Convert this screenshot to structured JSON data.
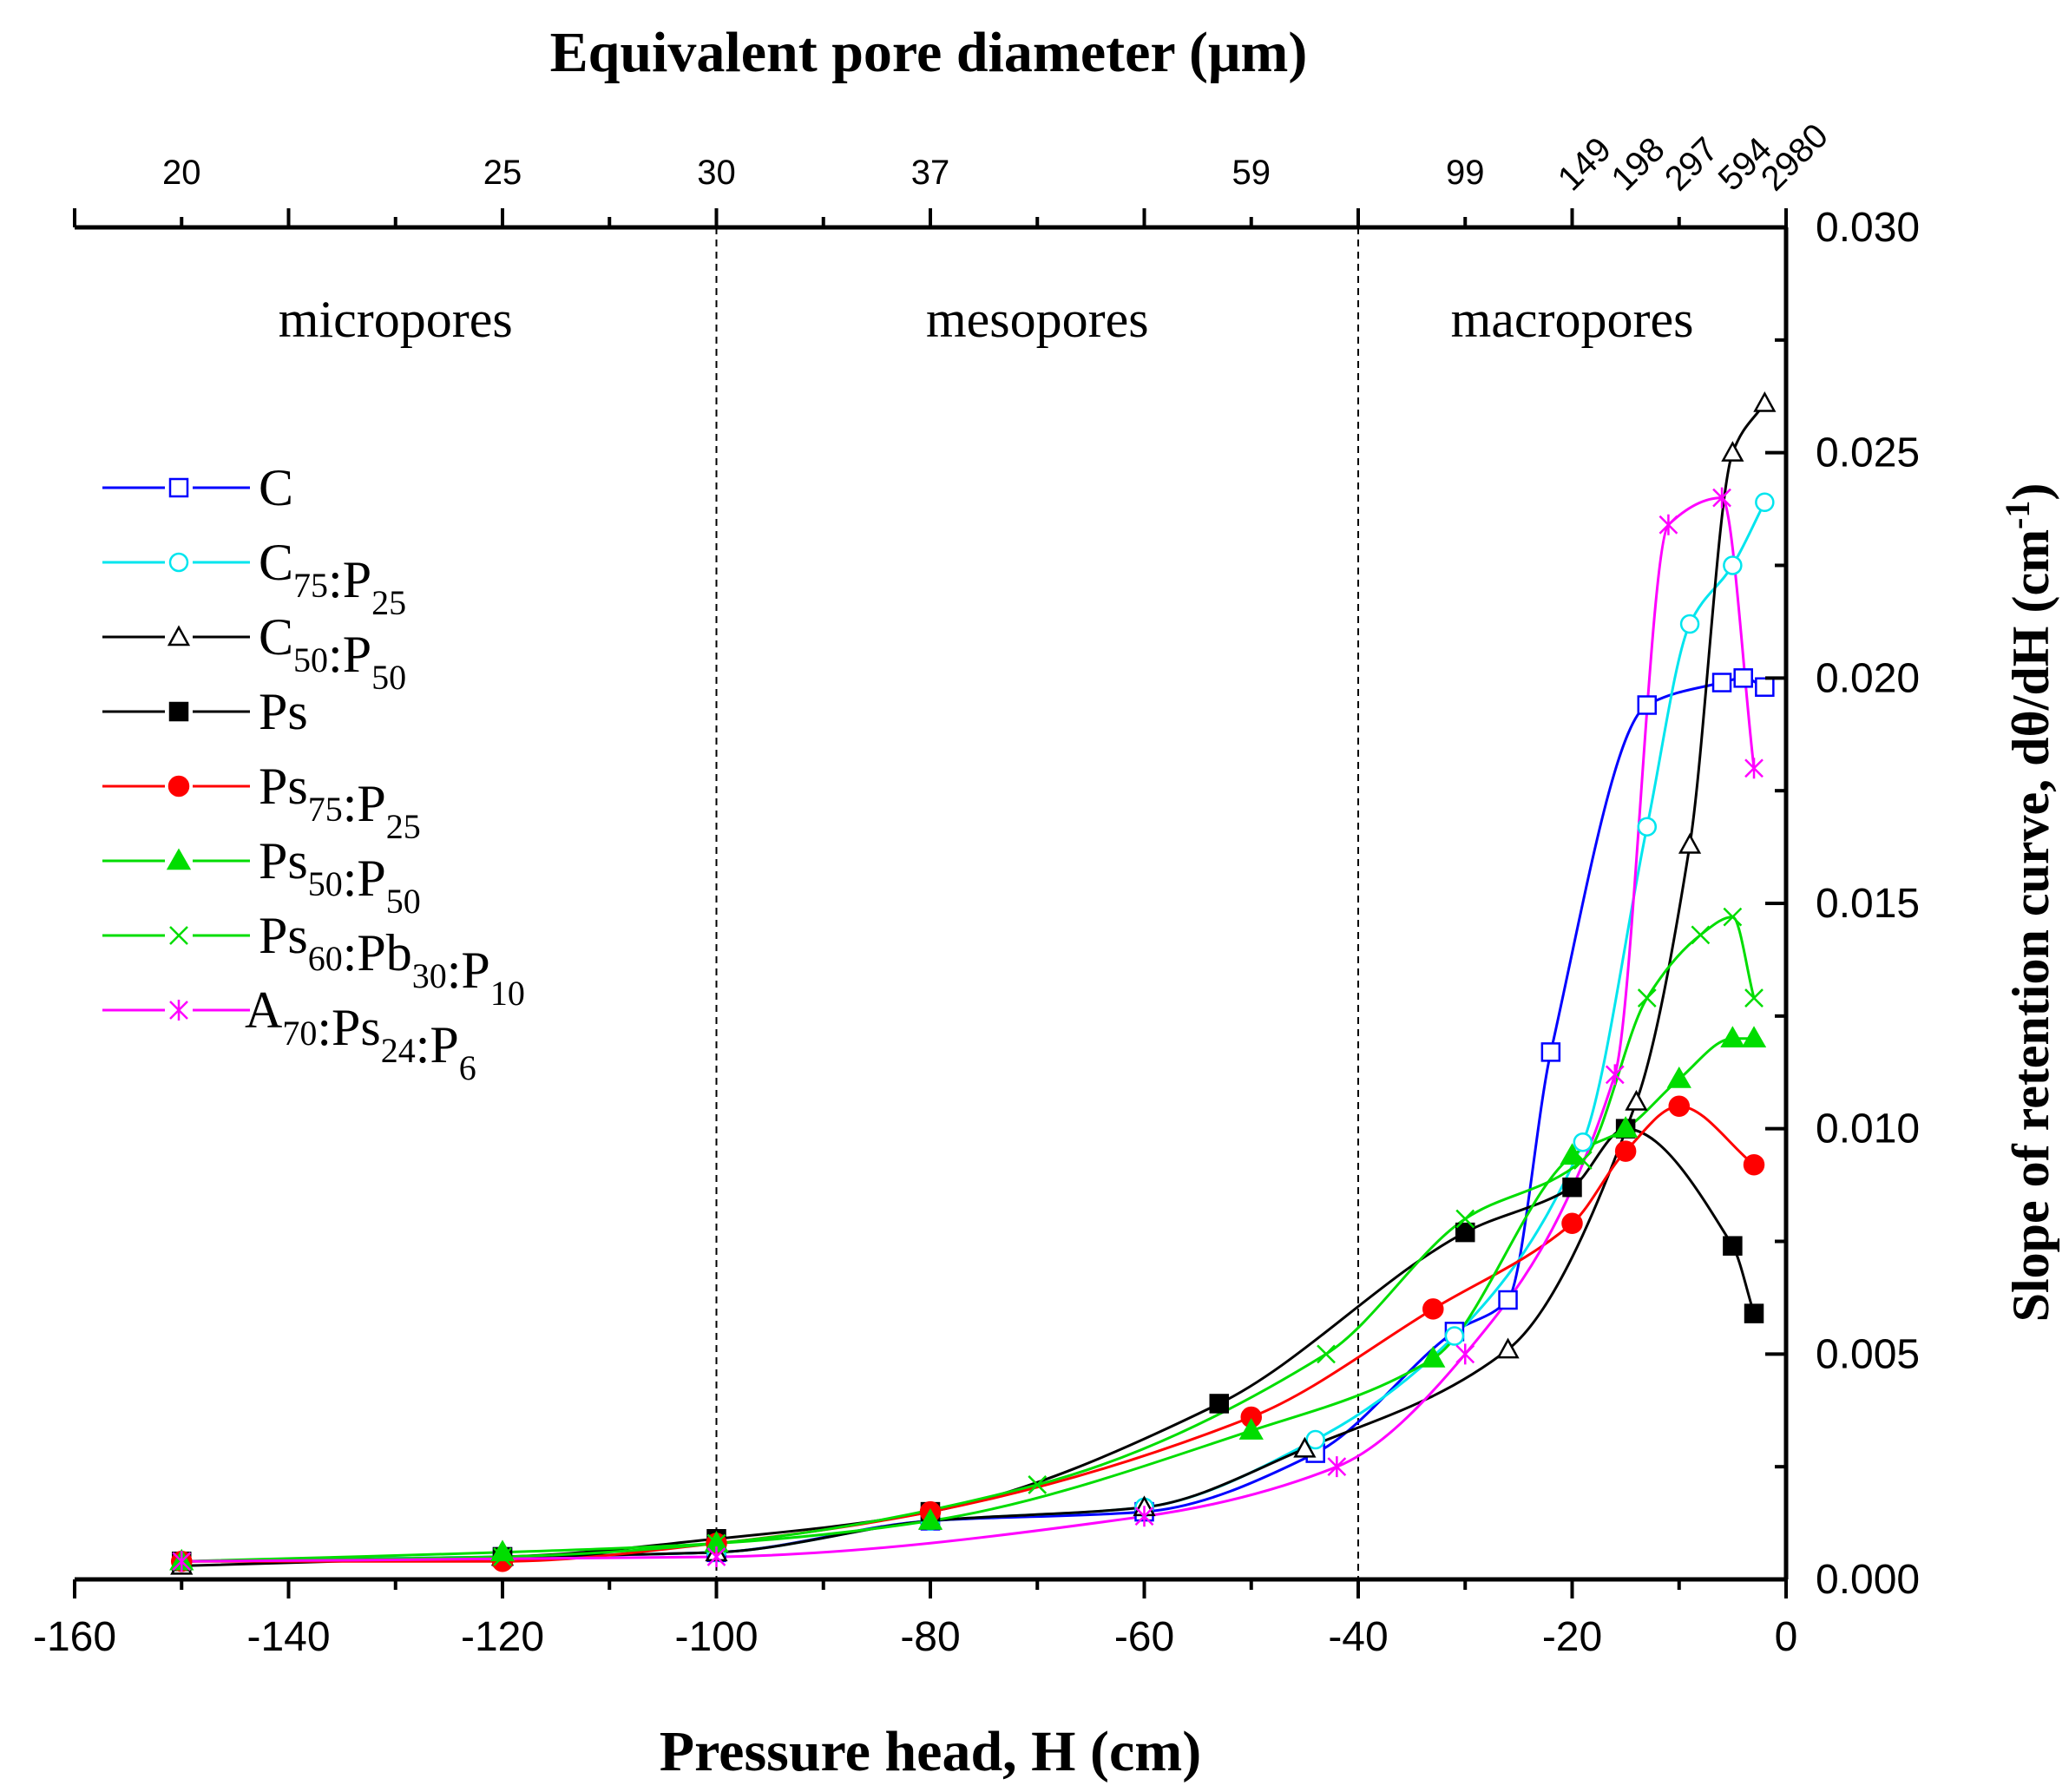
{
  "chart_data": {
    "type": "scatter",
    "title": "Equivalent pore diameter (μm)",
    "xlabel": "Pressure head, H (cm)",
    "ylabel": "Slope of retention curve, dθ/dH (cm⁻¹)",
    "xlim": [
      -160,
      0
    ],
    "ylim": [
      0,
      0.03
    ],
    "x_ticks": [
      -160,
      -140,
      -120,
      -100,
      -80,
      -60,
      -40,
      -20,
      0
    ],
    "x_tick_labels": [
      "-160",
      "-140",
      "-120",
      "-100",
      "-80",
      "-60",
      "-40",
      "-20",
      "0"
    ],
    "y_ticks": [
      0,
      0.005,
      0.01,
      0.015,
      0.02,
      0.025,
      0.03
    ],
    "y_tick_labels": [
      "0.000",
      "0.005",
      "0.010",
      "0.015",
      "0.020",
      "0.025",
      "0.030"
    ],
    "top_axis": {
      "ticks": [
        {
          "label": "20",
          "x": -150
        },
        {
          "label": "25",
          "x": -120
        },
        {
          "label": "30",
          "x": -100
        },
        {
          "label": "37",
          "x": -80
        },
        {
          "label": "59",
          "x": -50
        },
        {
          "label": "99",
          "x": -30
        },
        {
          "label": "149",
          "x": -20
        },
        {
          "label": "198",
          "x": -15
        },
        {
          "label": "297",
          "x": -10
        },
        {
          "label": "594",
          "x": -5
        },
        {
          "label": "2980",
          "x": -1
        }
      ]
    },
    "boundaries": [
      -100,
      -40
    ],
    "regions": [
      {
        "label": "micropores",
        "x": -130
      },
      {
        "label": "mesopores",
        "x": -70
      },
      {
        "label": "macropores",
        "x": -20
      }
    ],
    "ylabel_units_exponent": "-1",
    "legend_placement": "left",
    "series": [
      {
        "name": "C",
        "main": "C",
        "parts": [
          [
            "C",
            ""
          ]
        ],
        "color": "#0000ff",
        "marker": "square-open",
        "x": [
          -150,
          -120,
          -100,
          -80,
          -60,
          -44,
          -31,
          -26,
          -22,
          -13,
          -6,
          -4,
          -2
        ],
        "y": [
          0.0004,
          0.0005,
          0.0006,
          0.0013,
          0.0015,
          0.0028,
          0.0055,
          0.0062,
          0.0117,
          0.0194,
          0.0199,
          0.02,
          0.0198
        ]
      },
      {
        "name": "C75:P25",
        "main": "C",
        "parts": [
          [
            "C",
            "75"
          ],
          [
            ":P",
            "25"
          ]
        ],
        "color": "#00e5ee",
        "marker": "circle-open",
        "x": [
          -150,
          -120,
          -100,
          -80,
          -60,
          -44,
          -31,
          -19,
          -13,
          -9,
          -5,
          -2
        ],
        "y": [
          0.0004,
          0.0005,
          0.0006,
          0.0013,
          0.0016,
          0.0031,
          0.0054,
          0.0097,
          0.0167,
          0.0212,
          0.0225,
          0.0239
        ]
      },
      {
        "name": "C50:P50",
        "main": "C",
        "parts": [
          [
            "C",
            "50"
          ],
          [
            ":P",
            "50"
          ]
        ],
        "color": "#000000",
        "marker": "triangle-open",
        "x": [
          -150,
          -120,
          -100,
          -80,
          -60,
          -45,
          -26,
          -14,
          -9,
          -5,
          -2
        ],
        "y": [
          0.0003,
          0.0005,
          0.0006,
          0.0013,
          0.0016,
          0.0029,
          0.0051,
          0.0106,
          0.0163,
          0.025,
          0.0261
        ]
      },
      {
        "name": "Ps",
        "main": "Ps",
        "parts": [
          [
            "Ps",
            ""
          ]
        ],
        "color": "#000000",
        "marker": "square-filled",
        "x": [
          -150,
          -120,
          -100,
          -80,
          -53,
          -30,
          -20,
          -15,
          -5,
          -3
        ],
        "y": [
          0.0004,
          0.0005,
          0.0009,
          0.0015,
          0.0039,
          0.0077,
          0.0087,
          0.01,
          0.0074,
          0.0059
        ]
      },
      {
        "name": "Ps75:P25",
        "main": "Ps",
        "parts": [
          [
            "Ps",
            "75"
          ],
          [
            ":P",
            "25"
          ]
        ],
        "color": "#ff0000",
        "marker": "circle-filled",
        "x": [
          -150,
          -120,
          -100,
          -80,
          -50,
          -33,
          -20,
          -15,
          -10,
          -3
        ],
        "y": [
          0.0004,
          0.0004,
          0.0008,
          0.0015,
          0.0036,
          0.006,
          0.0079,
          0.0095,
          0.0105,
          0.0092
        ]
      },
      {
        "name": "Ps50:P50",
        "main": "Ps",
        "parts": [
          [
            "Ps",
            "50"
          ],
          [
            ":P",
            "50"
          ]
        ],
        "color": "#00dd00",
        "marker": "triangle-filled",
        "x": [
          -150,
          -120,
          -100,
          -80,
          -50,
          -33,
          -20,
          -15,
          -10,
          -5,
          -3
        ],
        "y": [
          0.0004,
          0.0006,
          0.0008,
          0.0013,
          0.0033,
          0.0049,
          0.0094,
          0.01,
          0.0111,
          0.012,
          0.012
        ]
      },
      {
        "name": "Ps60:Pb30:P10",
        "main": "Ps",
        "parts": [
          [
            "Ps",
            "60"
          ],
          [
            ":Pb",
            "30"
          ],
          [
            ":P",
            "10"
          ]
        ],
        "color": "#00dd00",
        "marker": "cross",
        "x": [
          -150,
          -120,
          -100,
          -70,
          -43,
          -30,
          -19,
          -13,
          -8,
          -5,
          -3
        ],
        "y": [
          0.0004,
          0.0005,
          0.0008,
          0.0021,
          0.005,
          0.008,
          0.0093,
          0.0129,
          0.0143,
          0.0147,
          0.0129
        ]
      },
      {
        "name": "A70:Ps24:P6",
        "main": "A",
        "parts": [
          [
            "A",
            "70"
          ],
          [
            ":Ps",
            "24"
          ],
          [
            ":P",
            "6"
          ]
        ],
        "color": "#ff00ff",
        "marker": "star",
        "x": [
          -150,
          -100,
          -60,
          -42,
          -30,
          -16,
          -11,
          -6,
          -3
        ],
        "y": [
          0.0004,
          0.0005,
          0.0014,
          0.0025,
          0.005,
          0.0112,
          0.0234,
          0.024,
          0.018
        ]
      }
    ]
  }
}
